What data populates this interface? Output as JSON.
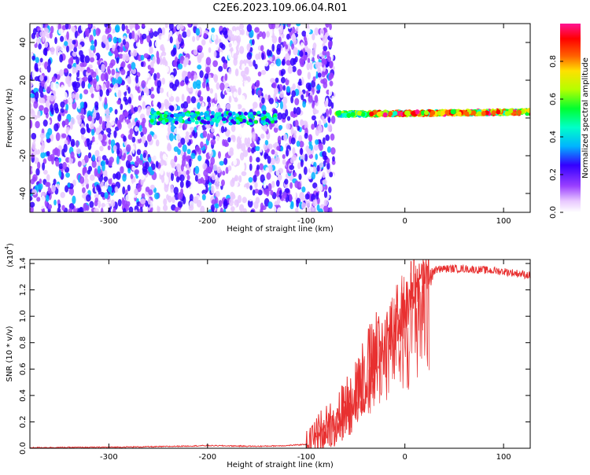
{
  "title": "C2E6.2023.109.06.04.R01",
  "chart_data": [
    {
      "type": "heatmap",
      "xlabel": "Height of straight line (km)",
      "ylabel": "Frequency (Hz)",
      "xlim": [
        -380,
        127
      ],
      "ylim": [
        -50,
        50
      ],
      "xticks": [
        -300,
        -200,
        -100,
        0,
        100
      ],
      "yticks": [
        -40,
        -20,
        0,
        20,
        40
      ],
      "colorbar": {
        "label": "Normalized spectral amplitude",
        "range": [
          0.0,
          1.0
        ],
        "ticks": [
          0.0,
          0.2,
          0.4,
          0.6,
          0.8
        ],
        "tick_labels": [
          "0.0",
          "0.2",
          "0.4",
          "0.6",
          "0.8"
        ],
        "colors": [
          "#ffffff",
          "#e8c8ff",
          "#9a40ff",
          "#3300ff",
          "#00b4ff",
          "#00ffc8",
          "#00ff30",
          "#b4ff00",
          "#ffe000",
          "#ff6000",
          "#ff0000",
          "#ff1493"
        ]
      },
      "regions": [
        {
          "name": "noise",
          "x": [
            -380,
            -72
          ],
          "amplitude": 0.3
        },
        {
          "name": "weak signal band",
          "x": [
            -258,
            -130
          ],
          "y": [
            -3,
            3
          ],
          "amplitude": 0.55
        },
        {
          "name": "strong signal band",
          "x": [
            -70,
            127
          ],
          "y": [
            0,
            4
          ],
          "amplitude": 0.9
        }
      ]
    },
    {
      "type": "line",
      "xlabel": "Height of straight line (km)",
      "ylabel": "SNR (10 * v/v)",
      "y_multiplier": "(x10",
      "y_multiplier_exp": "4",
      "y_multiplier_close": ")",
      "xlim": [
        -380,
        127
      ],
      "ylim": [
        0.0,
        1.43
      ],
      "xticks": [
        -300,
        -200,
        -100,
        0,
        100
      ],
      "yticks": [
        0.0,
        0.2,
        0.4,
        0.6,
        0.8,
        1.0,
        1.2,
        1.4
      ],
      "ytick_labels": [
        "0.0",
        "0.2",
        "0.4",
        "0.6",
        "0.8",
        "1.0",
        "1.2",
        "1.4"
      ],
      "color": "#e83030",
      "series": [
        {
          "x": [
            -380,
            -300,
            -250,
            -200,
            -150,
            -120,
            -100,
            -90,
            -80,
            -70,
            -60,
            -50,
            -40,
            -30,
            -20,
            -10,
            0,
            10,
            20,
            30,
            40,
            60,
            80,
            100,
            127
          ],
          "y": [
            0.005,
            0.008,
            0.012,
            0.02,
            0.015,
            0.02,
            0.03,
            0.1,
            0.18,
            0.2,
            0.3,
            0.45,
            0.55,
            0.7,
            0.8,
            0.95,
            1.05,
            1.22,
            1.3,
            1.35,
            1.36,
            1.36,
            1.35,
            1.34,
            1.31
          ]
        }
      ]
    }
  ]
}
